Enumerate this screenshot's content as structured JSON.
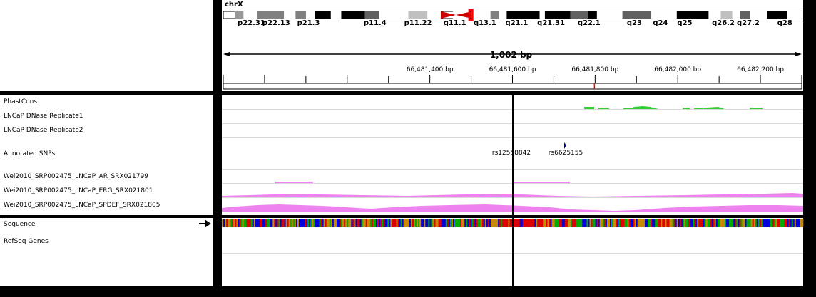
{
  "header": {
    "chromosome": "chrX",
    "bands": [
      {
        "name": "p22.31",
        "start": 0.02,
        "end": 0.035,
        "shade": "#999999"
      },
      {
        "name": "",
        "start": 0.035,
        "end": 0.058,
        "shade": "#ffffff"
      },
      {
        "name": "p22.13",
        "start": 0.058,
        "end": 0.105,
        "shade": "#808080"
      },
      {
        "name": "",
        "start": 0.105,
        "end": 0.125,
        "shade": "#ffffff"
      },
      {
        "name": "",
        "start": 0.125,
        "end": 0.143,
        "shade": "#808080"
      },
      {
        "name": "p21.3",
        "start": 0.143,
        "end": 0.158,
        "shade": "#ffffff"
      },
      {
        "name": "",
        "start": 0.158,
        "end": 0.186,
        "shade": "#000000"
      },
      {
        "name": "",
        "start": 0.186,
        "end": 0.204,
        "shade": "#ffffff"
      },
      {
        "name": "",
        "start": 0.204,
        "end": 0.245,
        "shade": "#000000"
      },
      {
        "name": "p11.4",
        "start": 0.245,
        "end": 0.27,
        "shade": "#606060"
      },
      {
        "name": "",
        "start": 0.27,
        "end": 0.32,
        "shade": "#ffffff"
      },
      {
        "name": "p11.22",
        "start": 0.32,
        "end": 0.353,
        "shade": "#c0c0c0"
      },
      {
        "name": "",
        "start": 0.353,
        "end": 0.376,
        "shade": "#ffffff"
      },
      {
        "name": "",
        "start": 0.397,
        "end": 0.425,
        "shade": "#ffffff"
      },
      {
        "name": "",
        "start": 0.43,
        "end": 0.462,
        "shade": "#ffffff"
      },
      {
        "name": "q13.1",
        "start": 0.462,
        "end": 0.476,
        "shade": "#808080"
      },
      {
        "name": "",
        "start": 0.476,
        "end": 0.49,
        "shade": "#ffffff"
      },
      {
        "name": "q21.1",
        "start": 0.49,
        "end": 0.547,
        "shade": "#000000"
      },
      {
        "name": "",
        "start": 0.547,
        "end": 0.556,
        "shade": "#ffffff"
      },
      {
        "name": "q21.31",
        "start": 0.556,
        "end": 0.6,
        "shade": "#000000"
      },
      {
        "name": "",
        "start": 0.6,
        "end": 0.63,
        "shade": "#606060"
      },
      {
        "name": "q22.1",
        "start": 0.63,
        "end": 0.646,
        "shade": "#000000"
      },
      {
        "name": "",
        "start": 0.646,
        "end": 0.69,
        "shade": "#ffffff"
      },
      {
        "name": "q23",
        "start": 0.69,
        "end": 0.74,
        "shade": "#606060"
      },
      {
        "name": "q24",
        "start": 0.74,
        "end": 0.784,
        "shade": "#ffffff"
      },
      {
        "name": "q25",
        "start": 0.784,
        "end": 0.839,
        "shade": "#000000"
      },
      {
        "name": "",
        "start": 0.839,
        "end": 0.86,
        "shade": "#ffffff"
      },
      {
        "name": "q26.2",
        "start": 0.86,
        "end": 0.88,
        "shade": "#c0c0c0"
      },
      {
        "name": "",
        "start": 0.88,
        "end": 0.893,
        "shade": "#ffffff"
      },
      {
        "name": "q27.2",
        "start": 0.893,
        "end": 0.91,
        "shade": "#606060"
      },
      {
        "name": "",
        "start": 0.91,
        "end": 0.94,
        "shade": "#ffffff"
      },
      {
        "name": "q28",
        "start": 0.94,
        "end": 0.975,
        "shade": "#000000"
      },
      {
        "name": "",
        "start": 0.975,
        "end": 1.0,
        "shade": "#ffffff"
      }
    ],
    "band_labels": [
      "p22.31",
      "p22.13",
      "p21.3",
      "p11.4",
      "p11.22",
      "q11.1",
      "q13.1",
      "q21.1",
      "q21.31",
      "q22.1",
      "q23",
      "q24",
      "q25",
      "q26.2",
      "q27.2",
      "q28"
    ],
    "centromere_color": "#cc0000",
    "region_marker_color": "#ff0000",
    "span_label": "1,002 bp",
    "view_start_bp": 66480900,
    "view_end_bp": 66482300,
    "ticks": [
      {
        "bp": 66481400,
        "label": "66,481,400 bp"
      },
      {
        "bp": 66481600,
        "label": "66,481,600 bp"
      },
      {
        "bp": 66481800,
        "label": "66,481,800 bp"
      },
      {
        "bp": 66482000,
        "label": "66,482,000 bp"
      },
      {
        "bp": 66482200,
        "label": "66,482,200 bp"
      }
    ],
    "center_line_color": "#ff0000"
  },
  "tracks": {
    "phastcons": "PhastCons",
    "dnase_rep1": "LNCaP DNase Replicate1",
    "dnase_rep2": "LNCaP DNase Replicate2",
    "snps": "Annotated SNPs",
    "ar": "Wei2010_SRP002475_LNCaP_AR_SRX021799",
    "erg": "Wei2010_SRP002475_LNCaP_ERG_SRX021801",
    "spdef": "Wei2010_SRP002475_LNCaP_SPDEF_SRX021805",
    "sequence": "Sequence",
    "refseq": "RefSeq Genes"
  },
  "snp_features": [
    {
      "id": "rs12558842",
      "pos_bp": 66481800
    },
    {
      "id": "rs6625155",
      "pos_bp": 66481890
    }
  ],
  "colors": {
    "phastcons": "#33cc33",
    "chip_signal": "#ee82ee",
    "snp_marker": "#0000aa",
    "cursor": "#000000",
    "base_A": "#00aa00",
    "base_C": "#0000dd",
    "base_G": "#c88a00",
    "base_T": "#dd0000"
  },
  "sequence_direction_icon": "arrow-right-icon"
}
